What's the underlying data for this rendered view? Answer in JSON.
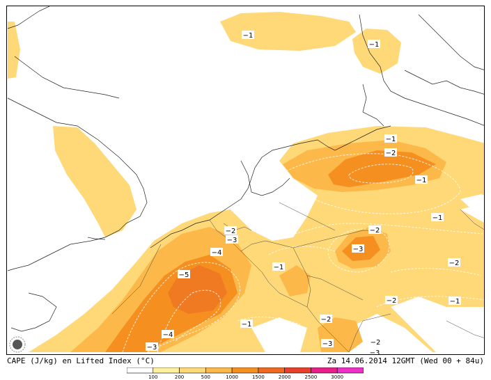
{
  "footer": {
    "left_text": "CAPE (J/kg) en Lifted Index (°C)",
    "right_text": "Za 14.06.2014 12GMT (Wed 00 + 84u)"
  },
  "legend": {
    "ticks": [
      "100",
      "200",
      "500",
      "1000",
      "1500",
      "2000",
      "2500",
      "3000"
    ],
    "colors": [
      "#ffffff",
      "#fff0a0",
      "#ffd977",
      "#fdb84a",
      "#f59020",
      "#ef6a20",
      "#e8402a",
      "#e8208a",
      "#ee30c8"
    ]
  },
  "lifted_index_labels": [
    {
      "id": "li-1",
      "text": "−1"
    },
    {
      "id": "li-2",
      "text": "−1"
    },
    {
      "id": "li-3",
      "text": "−1"
    },
    {
      "id": "li-4",
      "text": "−2"
    },
    {
      "id": "li-5",
      "text": "−1"
    },
    {
      "id": "li-6",
      "text": "−1"
    },
    {
      "id": "li-7",
      "text": "−2"
    },
    {
      "id": "li-8",
      "text": "−3"
    },
    {
      "id": "li-9",
      "text": "−2"
    },
    {
      "id": "li-10",
      "text": "−3"
    },
    {
      "id": "li-11",
      "text": "−4"
    },
    {
      "id": "li-12",
      "text": "−5"
    },
    {
      "id": "li-13",
      "text": "−1"
    },
    {
      "id": "li-14",
      "text": "−2"
    },
    {
      "id": "li-15",
      "text": "−1"
    },
    {
      "id": "li-16",
      "text": "−2"
    },
    {
      "id": "li-17",
      "text": "−1"
    },
    {
      "id": "li-18",
      "text": "−4"
    },
    {
      "id": "li-19",
      "text": "−3"
    },
    {
      "id": "li-20",
      "text": "−2"
    },
    {
      "id": "li-21",
      "text": "−3"
    },
    {
      "id": "li-22",
      "text": "−2"
    },
    {
      "id": "li-23",
      "text": "−3"
    }
  ]
}
